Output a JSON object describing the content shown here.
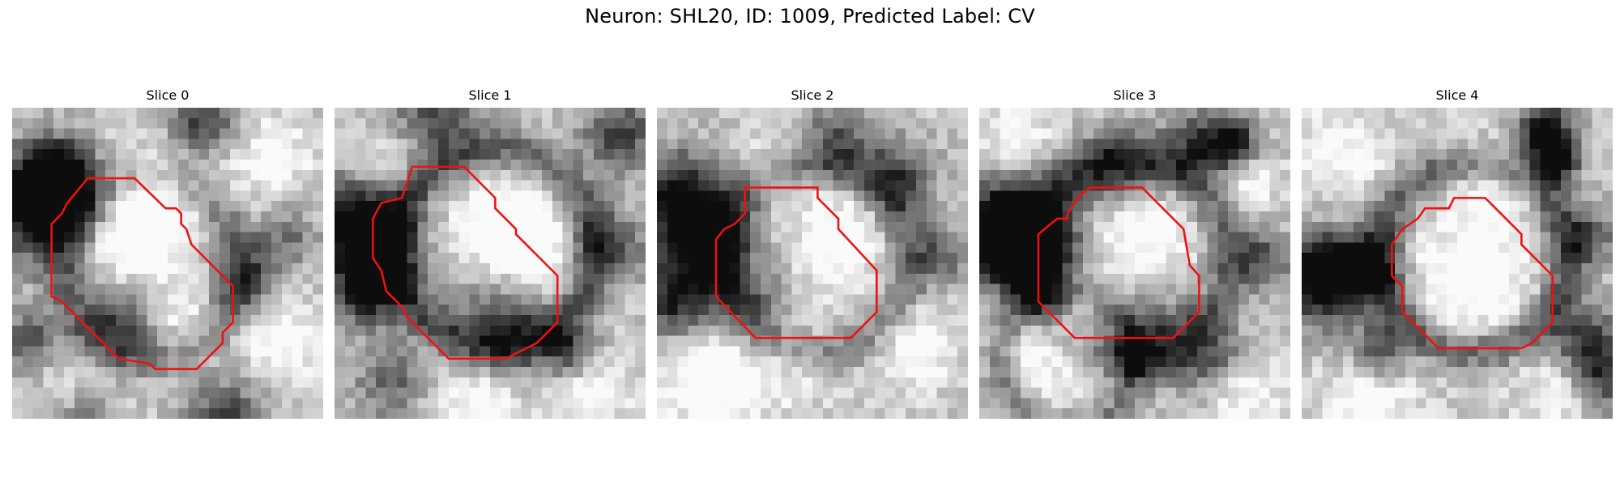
{
  "figure": {
    "title": "Neuron: SHL20, ID: 1009, Predicted Label: CV"
  },
  "colors": {
    "contour": "#ee1111",
    "background": "#ffffff"
  },
  "panels": [
    {
      "title": "Slice 0"
    },
    {
      "title": "Slice 1"
    },
    {
      "title": "Slice 2"
    },
    {
      "title": "Slice 3"
    },
    {
      "title": "Slice 4"
    }
  ]
}
